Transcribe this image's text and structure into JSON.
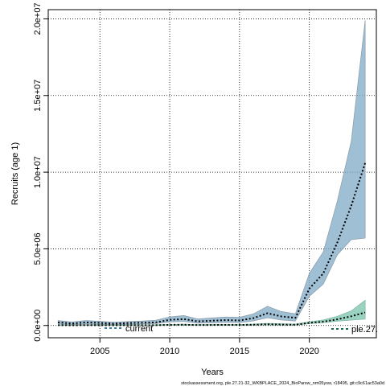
{
  "chart_data": {
    "type": "line",
    "xlabel": "Years",
    "ylabel": "Recruits (age 1)",
    "xlim": [
      2001.3,
      2024.8
    ],
    "ylim": [
      -800000,
      20600000
    ],
    "x_ticks": [
      2005,
      2010,
      2015,
      2020
    ],
    "x_tick_labels": [
      "2005",
      "2010",
      "2015",
      "2020"
    ],
    "y_ticks": [
      0,
      5000000,
      10000000,
      15000000,
      20000000
    ],
    "y_tick_labels": [
      "0.0e+00",
      "5.0e+06",
      "1.0e+07",
      "1.5e+07",
      "2.0e+07"
    ],
    "grid": true,
    "x": [
      2002,
      2003,
      2004,
      2005,
      2006,
      2007,
      2008,
      2009,
      2010,
      2011,
      2012,
      2013,
      2014,
      2015,
      2016,
      2017,
      2018,
      2019,
      2020,
      2021,
      2022,
      2023,
      2024
    ],
    "series": [
      {
        "name": "current",
        "color": "#7faac6",
        "line_color": "#000000",
        "values": [
          200000,
          130000,
          200000,
          170000,
          120000,
          160000,
          180000,
          200000,
          370000,
          420000,
          270000,
          310000,
          350000,
          330000,
          480000,
          800000,
          590000,
          500000,
          2400000,
          3400000,
          5400000,
          7800000,
          10600000
        ],
        "lower": [
          100000,
          60000,
          100000,
          80000,
          60000,
          80000,
          100000,
          120000,
          230000,
          270000,
          150000,
          170000,
          200000,
          190000,
          300000,
          500000,
          360000,
          290000,
          1900000,
          2700000,
          4600000,
          5600000,
          5700000
        ],
        "upper": [
          320000,
          230000,
          320000,
          270000,
          220000,
          260000,
          290000,
          340000,
          560000,
          650000,
          430000,
          490000,
          550000,
          530000,
          760000,
          1250000,
          910000,
          760000,
          3400000,
          4800000,
          8100000,
          12000000,
          19900000
        ]
      },
      {
        "name": "ple.27.",
        "color": "#6fbfa6",
        "line_color": "#000000",
        "values": [
          20000,
          15000,
          18000,
          20000,
          15000,
          18000,
          20000,
          22000,
          40000,
          50000,
          30000,
          35000,
          40000,
          38000,
          50000,
          80000,
          60000,
          50000,
          170000,
          250000,
          400000,
          600000,
          850000
        ],
        "lower": [
          5000,
          4000,
          5000,
          6000,
          4000,
          5000,
          6000,
          7000,
          20000,
          25000,
          12000,
          15000,
          18000,
          16000,
          25000,
          40000,
          30000,
          25000,
          120000,
          180000,
          280000,
          350000,
          420000
        ],
        "upper": [
          40000,
          30000,
          35000,
          40000,
          30000,
          35000,
          40000,
          45000,
          70000,
          85000,
          55000,
          65000,
          70000,
          68000,
          90000,
          140000,
          110000,
          90000,
          240000,
          360000,
          600000,
          950000,
          1650000
        ]
      }
    ],
    "legends": [
      {
        "position": "bottom-left",
        "entries": [
          "current"
        ]
      },
      {
        "position": "bottom-right",
        "entries": [
          "ple.27."
        ]
      }
    ]
  },
  "footer": "stockassessment.org, ple.27.21-32_WKBPLACE_2024_BioParsw_nm05ysw, r18495, git:c9c61ac53a0d"
}
